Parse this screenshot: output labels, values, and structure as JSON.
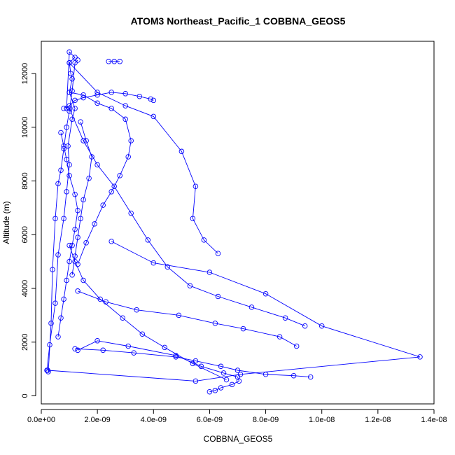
{
  "chart_data": {
    "type": "scatter",
    "title": "ATOM3 Northeast_Pacific_1 COBBNA_GEOS5",
    "xlabel": "COBBNA_GEOS5",
    "ylabel": "Altitude (m)",
    "xlim": [
      0,
      1.4e-08
    ],
    "ylim": [
      -300,
      13200
    ],
    "x_ticks": [
      0,
      2e-09,
      4e-09,
      6e-09,
      8e-09,
      1e-08,
      1.2e-08,
      1.4e-08
    ],
    "x_tick_labels": [
      "0.0e+00",
      "2.0e-09",
      "4.0e-09",
      "6.0e-09",
      "8.0e-09",
      "1.0e-08",
      "1.2e-08",
      "1.4e-08"
    ],
    "y_ticks": [
      0,
      2000,
      4000,
      6000,
      8000,
      10000,
      12000
    ],
    "y_tick_labels": [
      "0",
      "2000",
      "4000",
      "6000",
      "8000",
      "10000",
      "12000"
    ],
    "grid": false,
    "legend": "none",
    "marker": "open-circle",
    "line_color": "#0000ff",
    "series": [
      {
        "x": [
          2e-10,
          3e-10,
          5e-10,
          6e-10,
          8e-10,
          9e-10,
          1e-09,
          9.5e-10,
          1.1e-09,
          1.2e-09,
          1e-09,
          1.1e-09,
          1.05e-09,
          1e-09,
          1.2e-09,
          1e-09,
          9e-10
        ],
        "y": [
          950,
          1900,
          3450,
          5250,
          6600,
          7600,
          8600,
          9300,
          10300,
          10700,
          11300,
          11800,
          12000,
          12400,
          12600,
          12800,
          10700
        ]
      },
      {
        "x": [
          2.5e-10,
          3.5e-10,
          4e-10,
          5e-10,
          6e-10,
          7e-10,
          8e-10,
          9e-10,
          1e-09,
          1.1e-09,
          1.2e-09,
          1.3e-09
        ],
        "y": [
          900,
          2700,
          4700,
          6600,
          7900,
          8400,
          9200,
          10000,
          10600,
          11350,
          12400,
          12500
        ]
      },
      {
        "x": [
          1.3e-09,
          2e-09,
          3.1e-09,
          4.8e-09,
          5.7e-09,
          6.5e-09,
          7e-09,
          7.05e-09,
          6.8e-09,
          6.4e-09,
          6.2e-09,
          6e-09
        ],
        "y": [
          1700,
          2050,
          1850,
          1500,
          1100,
          850,
          700,
          550,
          420,
          300,
          200,
          150
        ]
      },
      {
        "x": [
          2.3e-10,
          5.5e-09,
          7.1e-09,
          1.35e-08,
          1e-08,
          8e-09,
          6e-09,
          4e-09,
          2.5e-09
        ],
        "y": [
          950,
          550,
          800,
          1450,
          2600,
          3800,
          4600,
          4950,
          5750
        ]
      },
      {
        "x": [
          1.2e-09,
          2.2e-09,
          3.3e-09,
          4.8e-09,
          5.5e-09,
          6.4e-09,
          7e-09,
          8e-09,
          9e-09,
          9.6e-09
        ],
        "y": [
          1750,
          1700,
          1600,
          1450,
          1300,
          1100,
          950,
          800,
          750,
          700
        ]
      },
      {
        "x": [
          1e-09,
          2e-09,
          3e-09,
          4e-09,
          5e-09,
          5.5e-09,
          5.4e-09,
          5.8e-09,
          6.3e-09
        ],
        "y": [
          12400,
          11300,
          10800,
          10400,
          9100,
          7800,
          6600,
          5800,
          5300
        ]
      },
      {
        "x": [
          1e-09,
          1.5e-09,
          2e-09,
          2.5e-09,
          3e-09,
          3.2e-09,
          3.1e-09,
          2.8e-09,
          2.5e-09,
          2.2e-09,
          1.9e-09,
          1.6e-09,
          1.3e-09
        ],
        "y": [
          11300,
          11200,
          10900,
          10700,
          10300,
          9500,
          8900,
          8200,
          7600,
          7100,
          6400,
          5700,
          4900
        ]
      },
      {
        "x": [
          1e-09,
          1.5e-09,
          2e-09,
          2.6e-09,
          3.2e-09,
          3.8e-09,
          4.5e-09,
          5.3e-09,
          6.3e-09,
          7.5e-09,
          8.7e-09,
          9.4e-09
        ],
        "y": [
          10700,
          9500,
          8600,
          7800,
          6800,
          5800,
          4800,
          4100,
          3700,
          3300,
          2900,
          2600
        ]
      },
      {
        "x": [
          1.3e-09,
          2.3e-09,
          3.4e-09,
          4.9e-09,
          6.2e-09,
          7.2e-09,
          8.5e-09,
          9.1e-09
        ],
        "y": [
          3900,
          3500,
          3200,
          3000,
          2700,
          2500,
          2200,
          1850
        ]
      },
      {
        "x": [
          1e-09,
          1.2e-09,
          1.5e-09,
          2.1e-09,
          2.9e-09,
          3.6e-09,
          4.4e-09,
          5.4e-09,
          6.6e-09
        ],
        "y": [
          5600,
          5000,
          4300,
          3600,
          2900,
          2300,
          1800,
          1200,
          600
        ]
      },
      {
        "x": [
          8e-10,
          1e-09,
          1.2e-09,
          1.5e-09,
          2e-09,
          2.5e-09,
          3e-09,
          3.5e-09,
          3.9e-09,
          4e-09
        ],
        "y": [
          10700,
          10800,
          11000,
          11100,
          11200,
          11300,
          11250,
          11150,
          11050,
          11000
        ]
      },
      {
        "x": [
          6e-10,
          7e-10,
          8e-10,
          9e-10,
          1e-09,
          1.1e-09,
          1.2e-09,
          1.3e-09,
          1.2e-09,
          1e-09,
          9e-10,
          8e-10,
          7e-10
        ],
        "y": [
          2200,
          2900,
          3600,
          4300,
          5000,
          5600,
          6200,
          6900,
          7500,
          8200,
          8800,
          9300,
          9800
        ]
      },
      {
        "x": [
          1.4e-09,
          1.6e-09,
          1.8e-09,
          1.7e-09,
          1.5e-09,
          1.4e-09,
          1.3e-09,
          1.2e-09,
          1.1e-09
        ],
        "y": [
          10200,
          9500,
          8900,
          8100,
          7300,
          6600,
          5900,
          5200,
          4500
        ]
      },
      {
        "x": [
          2.4e-09,
          2.6e-09,
          2.8e-09
        ],
        "y": [
          12450,
          12450,
          12450
        ]
      }
    ]
  }
}
